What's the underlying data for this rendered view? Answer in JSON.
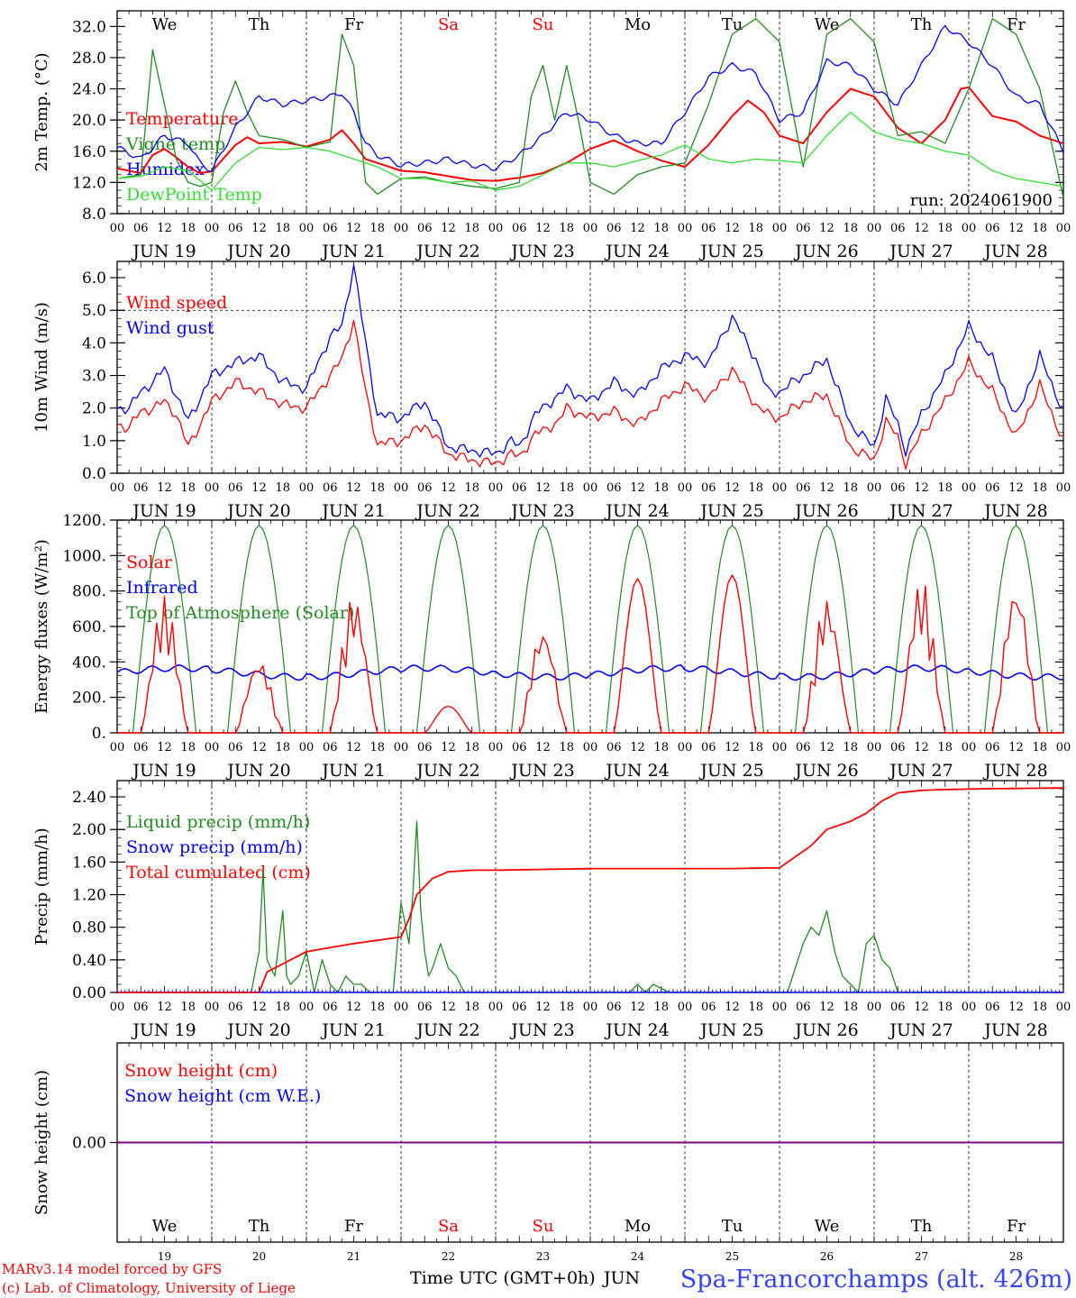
{
  "run_label": "run: 2024061900",
  "footer": {
    "model_line": "MARv3.14 model forced by GFS",
    "copyright_line": "(c) Lab. of Climatology, University of Liege",
    "time_axis_label": "Time UTC (GMT+0h)",
    "month_label": "JUN",
    "station_label": "Spa-Francorchamps (alt. 426m)"
  },
  "days": [
    {
      "abbr": "We",
      "date": "JUN 19",
      "num": "19",
      "weekend": false
    },
    {
      "abbr": "Th",
      "date": "JUN 20",
      "num": "20",
      "weekend": false
    },
    {
      "abbr": "Fr",
      "date": "JUN 21",
      "num": "21",
      "weekend": false
    },
    {
      "abbr": "Sa",
      "date": "JUN 22",
      "num": "22",
      "weekend": true
    },
    {
      "abbr": "Su",
      "date": "JUN 23",
      "num": "23",
      "weekend": true
    },
    {
      "abbr": "Mo",
      "date": "JUN 24",
      "num": "24",
      "weekend": false
    },
    {
      "abbr": "Tu",
      "date": "JUN 25",
      "num": "25",
      "weekend": false
    },
    {
      "abbr": "We",
      "date": "JUN 26",
      "num": "26",
      "weekend": false
    },
    {
      "abbr": "Th",
      "date": "JUN 27",
      "num": "27",
      "weekend": false
    },
    {
      "abbr": "Fr",
      "date": "JUN 28",
      "num": "28",
      "weekend": false
    }
  ],
  "hour_ticks": [
    "00",
    "06",
    "12",
    "18"
  ],
  "colors": {
    "red": "#ff0000",
    "green": "#228b22",
    "blue": "#0000ff",
    "lime": "#33dd33",
    "purple": "#7f007f",
    "weekend": "#ff0000",
    "footer": "#ff0000",
    "station": "#3344ff"
  },
  "chart_data": [
    {
      "type": "line",
      "ylabel": "2m Temp. (°C)",
      "ylim": [
        8,
        34
      ],
      "yticks": [
        "8.0",
        "12.0",
        "16.0",
        "20.0",
        "24.0",
        "28.0",
        "32.0"
      ],
      "x_unit": "hours since 2024-06-19 00 UTC",
      "legend": [
        "Temperature",
        "Vigne temp",
        "Humidex",
        "DewPoint Temp"
      ],
      "series": [
        {
          "name": "Temperature",
          "color": "red",
          "x": [
            0,
            6,
            9,
            12,
            15,
            18,
            21,
            24,
            30,
            33,
            36,
            42,
            48,
            54,
            57,
            60,
            63,
            66,
            72,
            78,
            84,
            90,
            96,
            102,
            108,
            114,
            120,
            126,
            132,
            138,
            144,
            150,
            156,
            160,
            164,
            168,
            174,
            180,
            186,
            192,
            198,
            204,
            210,
            214,
            216,
            222,
            228,
            234,
            240
          ],
          "y": [
            13.8,
            13.2,
            15.5,
            16.3,
            15.2,
            14.0,
            13.2,
            13.4,
            16.8,
            17.8,
            17.0,
            17.2,
            16.6,
            17.5,
            18.7,
            17.0,
            15.0,
            14.5,
            13.5,
            13.3,
            12.8,
            12.3,
            12.2,
            12.6,
            13.2,
            14.5,
            16.3,
            17.4,
            16.0,
            14.8,
            14.0,
            16.8,
            20.5,
            22.5,
            21.0,
            18.0,
            17.0,
            21.0,
            24.0,
            23.0,
            19.0,
            17.0,
            20.0,
            24.0,
            24.2,
            20.5,
            19.8,
            18.0,
            17.0
          ]
        },
        {
          "name": "Vigne temp",
          "color": "green",
          "x": [
            0,
            6,
            9,
            12,
            15,
            18,
            21,
            24,
            27,
            30,
            33,
            36,
            42,
            48,
            54,
            57,
            60,
            63,
            66,
            72,
            78,
            84,
            90,
            96,
            102,
            105,
            108,
            111,
            114,
            117,
            120,
            126,
            132,
            138,
            144,
            150,
            156,
            162,
            168,
            174,
            180,
            186,
            192,
            198,
            204,
            210,
            216,
            222,
            228,
            234,
            240
          ],
          "y": [
            12.5,
            13.0,
            29.0,
            22.0,
            15.0,
            12.0,
            11.5,
            12.0,
            21.0,
            25.0,
            21.0,
            18.0,
            17.5,
            16.5,
            17.2,
            31.0,
            27.0,
            12.0,
            10.5,
            12.5,
            12.7,
            12.0,
            11.5,
            11.2,
            12.0,
            23.0,
            27.0,
            20.0,
            27.0,
            20.0,
            12.0,
            10.5,
            13.0,
            14.0,
            14.5,
            22.0,
            31.0,
            33.0,
            30.0,
            14.0,
            31.0,
            33.0,
            30.0,
            18.0,
            18.5,
            17.0,
            24.0,
            33.0,
            31.0,
            24.0,
            10.0
          ]
        },
        {
          "name": "Humidex",
          "color": "blue",
          "x": [
            0,
            6,
            12,
            18,
            21,
            24,
            30,
            36,
            42,
            48,
            54,
            57,
            60,
            63,
            66,
            72,
            78,
            84,
            90,
            96,
            102,
            108,
            114,
            120,
            126,
            132,
            138,
            144,
            150,
            156,
            162,
            168,
            174,
            180,
            186,
            192,
            198,
            204,
            210,
            216,
            222,
            228,
            234,
            240
          ],
          "y": [
            16.5,
            15.0,
            18.0,
            17.0,
            14.5,
            13.5,
            19.0,
            23.0,
            22.0,
            22.5,
            23.0,
            23.5,
            21.0,
            17.0,
            15.5,
            14.2,
            14.5,
            15.0,
            14.2,
            13.8,
            15.5,
            18.0,
            21.0,
            20.0,
            18.0,
            17.0,
            17.0,
            21.0,
            25.5,
            27.0,
            26.0,
            20.0,
            21.0,
            27.5,
            27.0,
            24.0,
            22.0,
            27.0,
            32.0,
            30.0,
            27.0,
            23.0,
            22.0,
            16.0
          ]
        },
        {
          "name": "DewPoint Temp",
          "color": "lime",
          "x": [
            0,
            6,
            12,
            18,
            24,
            30,
            36,
            42,
            48,
            54,
            60,
            66,
            72,
            78,
            84,
            90,
            96,
            102,
            108,
            114,
            120,
            126,
            132,
            138,
            144,
            150,
            156,
            162,
            168,
            174,
            180,
            186,
            192,
            198,
            204,
            210,
            216,
            222,
            228,
            234,
            240
          ],
          "y": [
            12.5,
            12.8,
            14.0,
            13.5,
            11.0,
            14.5,
            16.5,
            16.2,
            16.5,
            16.0,
            15.0,
            14.0,
            12.5,
            12.5,
            12.0,
            12.2,
            11.0,
            11.5,
            13.0,
            14.5,
            14.5,
            14.0,
            14.8,
            15.5,
            16.8,
            15.0,
            14.5,
            15.0,
            14.8,
            14.5,
            18.0,
            21.0,
            18.5,
            17.5,
            17.0,
            16.0,
            15.5,
            13.5,
            12.5,
            12.0,
            11.5
          ]
        }
      ]
    },
    {
      "type": "line",
      "ylabel": "10m Wind (m/s)",
      "ylim": [
        0,
        6.5
      ],
      "yticks": [
        "0.0",
        "1.0",
        "2.0",
        "3.0",
        "4.0",
        "5.0",
        "6.0"
      ],
      "hline": 5.0,
      "legend": [
        "Wind speed",
        "Wind gust"
      ],
      "series": [
        {
          "name": "Wind speed",
          "color": "red",
          "x": [
            0,
            3,
            6,
            9,
            12,
            15,
            18,
            21,
            24,
            30,
            36,
            42,
            48,
            54,
            57,
            60,
            63,
            66,
            72,
            78,
            84,
            90,
            96,
            100,
            102,
            106,
            108,
            112,
            114,
            120,
            126,
            130,
            132,
            138,
            144,
            150,
            156,
            162,
            165,
            168,
            174,
            180,
            186,
            192,
            195,
            198,
            200,
            204,
            210,
            216,
            222,
            228,
            234,
            240
          ],
          "y": [
            1.5,
            1.4,
            1.9,
            2.0,
            2.2,
            1.8,
            0.8,
            1.5,
            2.2,
            2.8,
            2.5,
            2.1,
            2.0,
            3.0,
            3.5,
            4.7,
            2.5,
            0.9,
            1.0,
            1.5,
            0.6,
            0.4,
            0.3,
            0.6,
            0.5,
            1.2,
            1.3,
            1.6,
            2.0,
            1.7,
            1.9,
            1.6,
            1.5,
            2.2,
            2.7,
            2.3,
            3.2,
            2.1,
            1.8,
            1.7,
            2.2,
            2.4,
            0.8,
            0.4,
            1.6,
            1.1,
            0.3,
            1.2,
            2.2,
            3.4,
            2.5,
            1.1,
            2.7,
            1.0
          ]
        },
        {
          "name": "Wind gust",
          "color": "blue",
          "x": [
            0,
            3,
            6,
            9,
            12,
            15,
            18,
            21,
            24,
            30,
            36,
            42,
            48,
            54,
            57,
            60,
            63,
            66,
            72,
            78,
            84,
            90,
            96,
            100,
            102,
            106,
            108,
            112,
            114,
            120,
            126,
            130,
            132,
            138,
            144,
            150,
            156,
            162,
            165,
            168,
            174,
            180,
            186,
            192,
            195,
            198,
            200,
            204,
            210,
            216,
            222,
            228,
            234,
            240
          ],
          "y": [
            2.0,
            2.0,
            2.5,
            2.8,
            3.2,
            2.4,
            1.6,
            2.3,
            3.0,
            3.4,
            3.6,
            2.8,
            2.6,
            4.2,
            4.5,
            6.4,
            4.0,
            1.8,
            1.7,
            2.2,
            0.8,
            0.7,
            0.6,
            1.0,
            0.8,
            1.8,
            2.0,
            2.4,
            2.6,
            2.2,
            2.8,
            2.5,
            2.4,
            3.2,
            3.6,
            3.4,
            4.8,
            3.5,
            2.5,
            2.5,
            3.0,
            3.5,
            1.5,
            0.8,
            2.3,
            1.5,
            0.7,
            1.8,
            3.0,
            4.5,
            3.5,
            1.7,
            3.6,
            1.9
          ]
        }
      ]
    },
    {
      "type": "line",
      "ylabel": "Energy fluxes (W/m²)",
      "ylim": [
        0,
        1200
      ],
      "yticks": [
        "0.",
        "200.",
        "400.",
        "600.",
        "800.",
        "1000.",
        "1200."
      ],
      "legend": [
        "Solar",
        "Infrared",
        "Top of Atmosphere (Solar)"
      ],
      "toa_peak": 1170,
      "daylight_hours": [
        4,
        20
      ],
      "solar_daily_peak": [
        770,
        420,
        780,
        150,
        600,
        870,
        890,
        770,
        870,
        850
      ],
      "infrared_base": 340,
      "series": [
        {
          "name": "Solar",
          "color": "red"
        },
        {
          "name": "Infrared",
          "color": "blue"
        },
        {
          "name": "Top of Atmosphere (Solar)",
          "color": "green"
        }
      ]
    },
    {
      "type": "line",
      "ylabel": "Precip (mm/h)",
      "ylim": [
        0,
        2.6
      ],
      "yticks": [
        "0.00",
        "0.40",
        "0.80",
        "1.20",
        "1.60",
        "2.00",
        "2.40"
      ],
      "legend": [
        "Liquid precip (mm/h)",
        "Snow precip (mm/h)",
        "Total cumulated (cm)"
      ],
      "series": [
        {
          "name": "Liquid precip (mm/h)",
          "color": "green",
          "x": [
            0,
            34,
            36,
            37,
            38,
            40,
            42,
            43,
            44,
            46,
            48,
            50,
            52,
            54,
            56,
            58,
            60,
            62,
            64,
            70,
            72,
            74,
            75,
            76,
            77,
            78,
            79,
            80,
            82,
            84,
            86,
            88,
            92,
            130,
            132,
            134,
            136,
            140,
            170,
            174,
            176,
            178,
            180,
            182,
            184,
            188,
            190,
            192,
            194,
            196,
            198,
            204,
            240
          ],
          "y": [
            0,
            0,
            0.5,
            1.5,
            0.4,
            0.2,
            1.0,
            0.2,
            0.1,
            0.2,
            0.5,
            0.0,
            0.4,
            0.1,
            0.0,
            0.2,
            0.1,
            0.1,
            0.0,
            0.0,
            1.1,
            0.6,
            1.2,
            2.1,
            1.0,
            0.5,
            0.2,
            0.3,
            0.6,
            0.3,
            0.2,
            0.0,
            0.0,
            0.0,
            0.1,
            0.0,
            0.1,
            0.0,
            0.0,
            0.6,
            0.8,
            0.7,
            1.0,
            0.5,
            0.2,
            0.0,
            0.6,
            0.7,
            0.4,
            0.3,
            0.0,
            0.0,
            0.0
          ]
        },
        {
          "name": "Snow precip (mm/h)",
          "color": "blue",
          "x": [
            0,
            240
          ],
          "y": [
            0,
            0
          ]
        },
        {
          "name": "Total cumulated (cm)",
          "color": "red",
          "x": [
            0,
            36,
            38,
            42,
            48,
            54,
            60,
            72,
            74,
            76,
            78,
            80,
            84,
            90,
            96,
            108,
            120,
            132,
            144,
            156,
            168,
            176,
            180,
            186,
            190,
            194,
            198,
            204,
            210,
            220,
            240
          ],
          "y": [
            0.0,
            0.0,
            0.25,
            0.35,
            0.5,
            0.55,
            0.6,
            0.68,
            0.9,
            1.2,
            1.3,
            1.4,
            1.48,
            1.5,
            1.5,
            1.51,
            1.52,
            1.52,
            1.52,
            1.52,
            1.53,
            1.8,
            2.0,
            2.1,
            2.2,
            2.35,
            2.45,
            2.48,
            2.49,
            2.5,
            2.51
          ]
        }
      ]
    },
    {
      "type": "line",
      "ylabel": "Snow height (cm)",
      "ylim": [
        -1,
        1
      ],
      "yticks": [
        "0.00"
      ],
      "legend": [
        "Snow height (cm)",
        "Snow height (cm W.E.)"
      ],
      "series": [
        {
          "name": "Snow height (cm)",
          "color": "red",
          "x": [
            0,
            240
          ],
          "y": [
            0,
            0
          ]
        },
        {
          "name": "Snow height (cm W.E.)",
          "color": "blue",
          "x": [
            0,
            240
          ],
          "y": [
            0,
            0
          ]
        }
      ]
    }
  ]
}
